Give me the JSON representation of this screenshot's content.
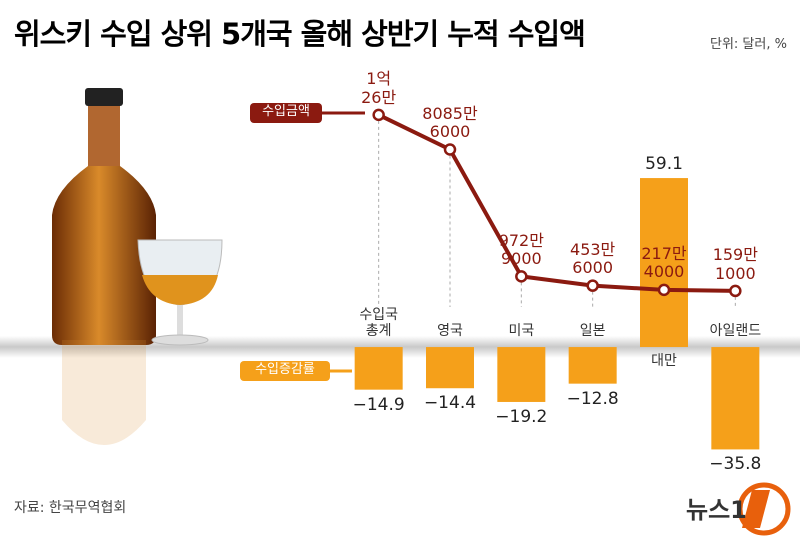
{
  "chart_data": {
    "type": "bar-line",
    "title": "위스키 수입 상위 5개국 올해 상반기 누적 수입액",
    "unit": "단위: 달러, %",
    "source": "자료: 한국무역협회",
    "logo": "뉴스1",
    "categories": [
      "수입국\n총계",
      "영국",
      "미국",
      "일본",
      "대만",
      "아일랜드"
    ],
    "series": [
      {
        "name": "수입증감률",
        "type": "bar",
        "color": "#f5a01a",
        "values": [
          -14.9,
          -14.4,
          -19.2,
          -12.8,
          59.1,
          -35.8
        ],
        "value_labels": [
          "−14.9",
          "−14.4",
          "−19.2",
          "−12.8",
          "59.1",
          "−35.8"
        ]
      },
      {
        "name": "수입금액",
        "type": "line",
        "axis": "y2",
        "color": "#8b1a10",
        "values": [
          100260000,
          80856000,
          9729000,
          4536000,
          2174000,
          1591000
        ],
        "value_labels": [
          "1억\n26만",
          "8085만\n6000",
          "972만\n9000",
          "453만\n6000",
          "217만\n4000",
          "159만\n1000"
        ]
      }
    ],
    "ylim": [
      -39.5,
      86.4
    ],
    "y2lim": [
      -93200000,
      108600000
    ]
  }
}
